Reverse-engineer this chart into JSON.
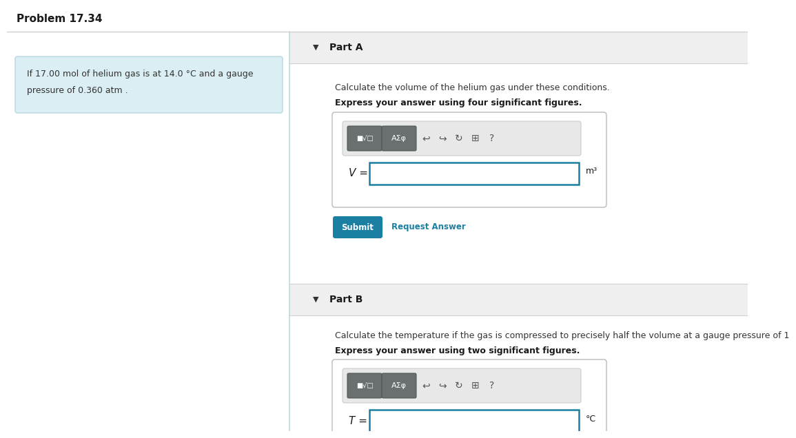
{
  "title": "Problem 17.34",
  "problem_text_line1": "If 17.00 mol of helium gas is at 14.0 °C and a gauge",
  "problem_text_line2": "pressure of 0.360 atm .",
  "problem_bg_color": "#daeef3",
  "problem_border_color": "#b8d8e0",
  "part_a_label": "Part A",
  "part_a_desc": "Calculate the volume of the helium gas under these conditions.",
  "part_a_bold": "Express your answer using four significant figures.",
  "part_a_var": "V =",
  "part_a_unit": "m³",
  "part_b_label": "Part B",
  "part_b_desc": "Calculate the temperature if the gas is compressed to precisely half the volume at a gauge pressure of 1",
  "part_b_bold": "Express your answer using two significant figures.",
  "part_b_var": "T =",
  "part_b_unit": "°C",
  "submit_text": "Submit",
  "submit_bg": "#1b7fa3",
  "request_answer_text": "Request Answer",
  "request_answer_color": "#1b7fa3",
  "divider_color": "#d0d0d0",
  "section_header_bg": "#efefef",
  "panel_bg": "#ffffff",
  "input_border_color": "#1b7fa3",
  "toolbar_bg": "#e8e8e8",
  "toolbar_border": "#c8c8c8",
  "outer_bg": "#ffffff",
  "left_divider_color": "#c0d8e0",
  "btn_bg": "#707878",
  "btn_border": "#505858",
  "icon_color": "#444444",
  "font_size_title": 11,
  "font_size_body": 9,
  "font_size_bold": 9,
  "font_size_label": 10,
  "font_size_var": 11,
  "font_size_unit": 9,
  "font_size_btn": 7.5,
  "font_size_icon": 10
}
